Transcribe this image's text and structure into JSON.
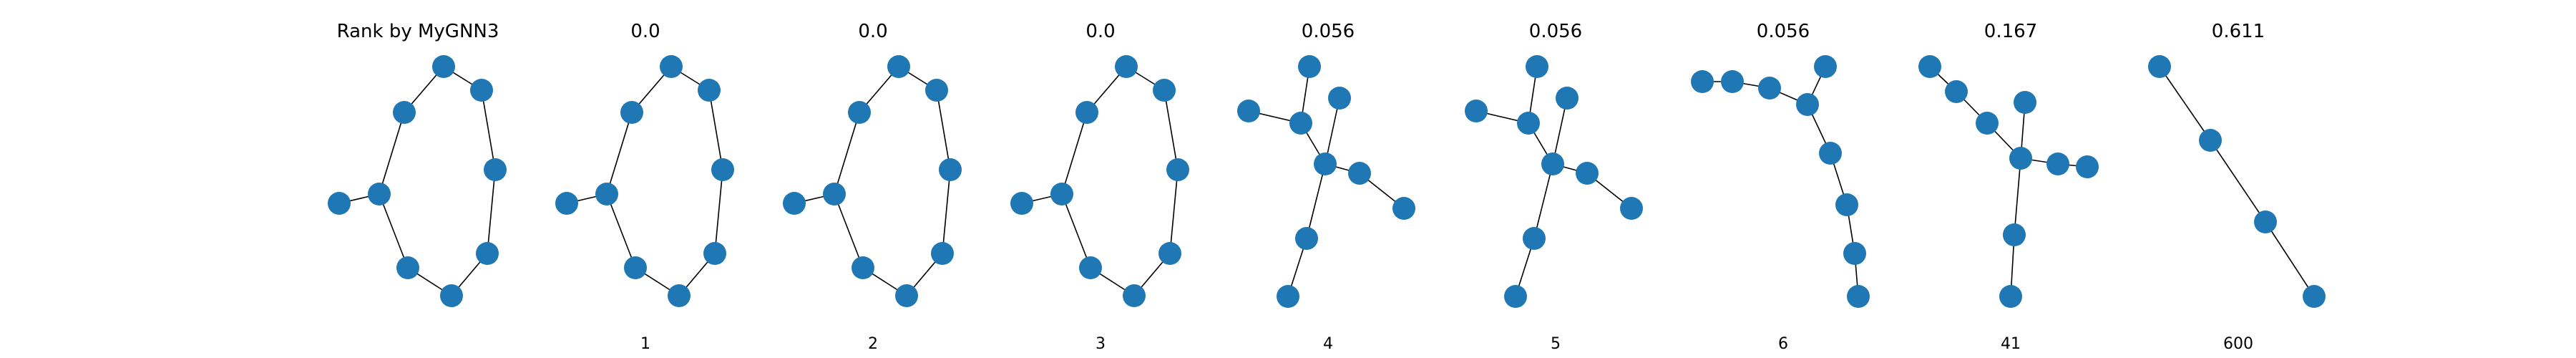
{
  "figure": {
    "node_color": "#1f77b4",
    "edge_color": "#000000",
    "background": "#ffffff"
  },
  "panels": [
    {
      "id": "rank-by-mygnn3",
      "title": "Rank by MyGNN3",
      "label": ""
    },
    {
      "id": "rank-1",
      "title": "0.0",
      "label": "1"
    },
    {
      "id": "rank-2",
      "title": "0.0",
      "label": "2"
    },
    {
      "id": "rank-3",
      "title": "0.0",
      "label": "3"
    },
    {
      "id": "rank-4",
      "title": "0.056",
      "label": "4"
    },
    {
      "id": "rank-5",
      "title": "0.056",
      "label": "5"
    },
    {
      "id": "rank-6",
      "title": "0.056",
      "label": "6"
    },
    {
      "id": "rank-41",
      "title": "0.167",
      "label": "41"
    },
    {
      "id": "rank-600",
      "title": "0.611",
      "label": "600"
    }
  ]
}
